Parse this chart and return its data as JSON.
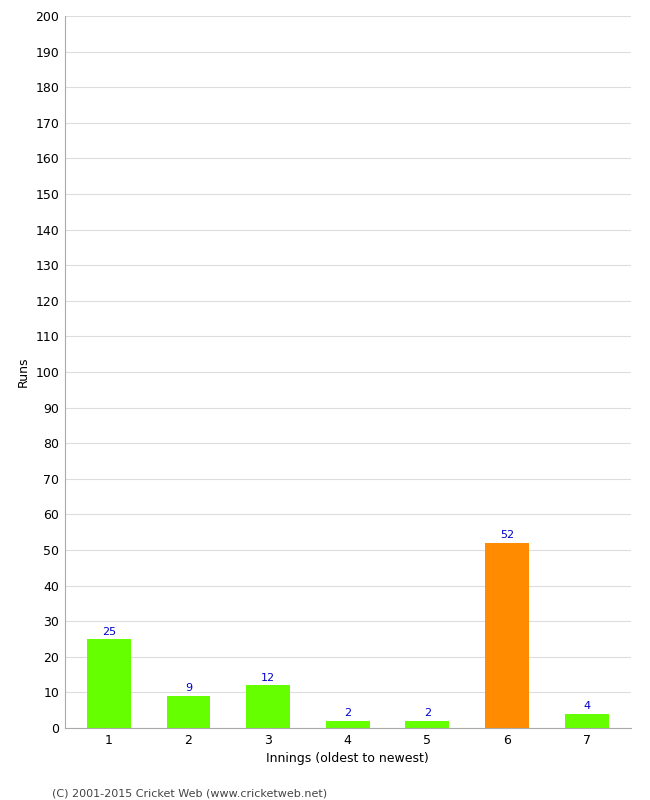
{
  "categories": [
    "1",
    "2",
    "3",
    "4",
    "5",
    "6",
    "7"
  ],
  "values": [
    25,
    9,
    12,
    2,
    2,
    52,
    4
  ],
  "bar_colors": [
    "#66ff00",
    "#66ff00",
    "#66ff00",
    "#66ff00",
    "#66ff00",
    "#ff8c00",
    "#66ff00"
  ],
  "xlabel": "Innings (oldest to newest)",
  "ylabel": "Runs",
  "ylim": [
    0,
    200
  ],
  "yticks": [
    0,
    10,
    20,
    30,
    40,
    50,
    60,
    70,
    80,
    90,
    100,
    110,
    120,
    130,
    140,
    150,
    160,
    170,
    180,
    190,
    200
  ],
  "label_color": "#0000cc",
  "label_fontsize": 8,
  "footer": "(C) 2001-2015 Cricket Web (www.cricketweb.net)",
  "background_color": "#ffffff",
  "grid_color": "#dddddd",
  "bar_width": 0.55,
  "tick_fontsize": 9,
  "axis_label_fontsize": 9,
  "footer_fontsize": 8
}
